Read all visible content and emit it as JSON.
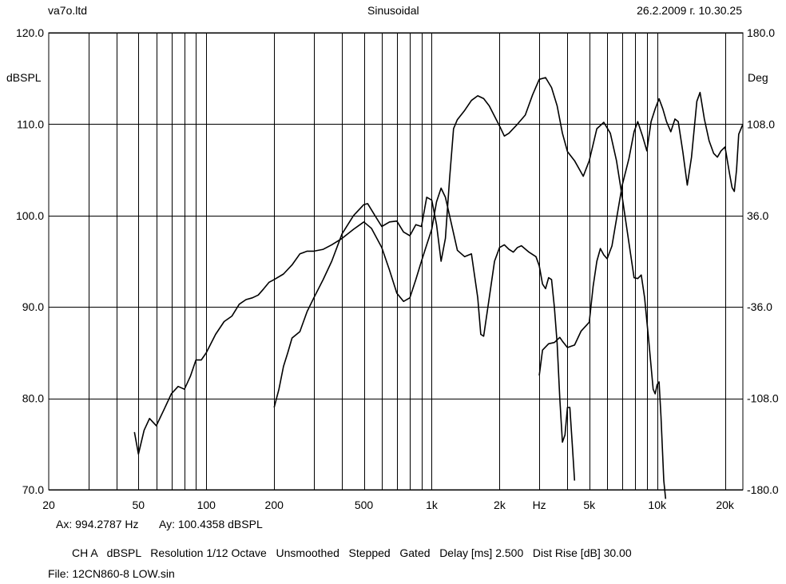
{
  "header": {
    "company": "va7o.ltd",
    "mode": "Sinusoidal",
    "timestamp": "26.2.2009 г. 10.30.25"
  },
  "axes": {
    "left_unit": "dBSPL",
    "right_unit": "Deg",
    "x_unit": "Hz"
  },
  "cursor": {
    "ax": "Ax: 994.2787 Hz",
    "ay": "Ay: 100.4358 dBSPL"
  },
  "settings_line": "CH A   dBSPL   Resolution 1/12 Octave   Unsmoothed   Stepped   Gated   Delay [ms] 2.500   Dist Rise [dB] 30.00",
  "file_line": "File: 12CN860-8 LOW.sin",
  "chart_data": {
    "type": "line",
    "x_scale": "log",
    "xlim": [
      20,
      24000
    ],
    "ylim": [
      70,
      120
    ],
    "y2lim": [
      -180,
      180
    ],
    "grid": true,
    "cursor_x": 994.2787,
    "x_ticks": [
      {
        "v": 20,
        "label": "20"
      },
      {
        "v": 50,
        "label": "50"
      },
      {
        "v": 100,
        "label": "100"
      },
      {
        "v": 200,
        "label": "200"
      },
      {
        "v": 500,
        "label": "500"
      },
      {
        "v": 1000,
        "label": "1k"
      },
      {
        "v": 2000,
        "label": "2k"
      },
      {
        "v": 5000,
        "label": "5k"
      },
      {
        "v": 10000,
        "label": "10k"
      },
      {
        "v": 20000,
        "label": "20k"
      }
    ],
    "x_unit_tick": 3000,
    "x_gridlines": [
      30,
      40,
      50,
      60,
      70,
      80,
      90,
      100,
      200,
      300,
      400,
      500,
      600,
      700,
      800,
      900,
      1000,
      2000,
      3000,
      4000,
      5000,
      6000,
      7000,
      8000,
      9000,
      10000,
      20000
    ],
    "y_ticks": [
      {
        "v": 70,
        "label": "70.0"
      },
      {
        "v": 80,
        "label": "80.0"
      },
      {
        "v": 90,
        "label": "90.0"
      },
      {
        "v": 100,
        "label": "100.0"
      },
      {
        "v": 110,
        "label": "110.0"
      },
      {
        "v": 120,
        "label": "120.0"
      }
    ],
    "y2_ticks": [
      {
        "v": -180,
        "label": "-180.0"
      },
      {
        "v": -108,
        "label": "-108.0"
      },
      {
        "v": -36,
        "label": "-36.0"
      },
      {
        "v": 36,
        "label": "36.0"
      },
      {
        "v": 108,
        "label": "108.0"
      },
      {
        "v": 180,
        "label": "180.0"
      }
    ],
    "series": [
      {
        "axis": "left",
        "points": [
          [
            48,
            76.3
          ],
          [
            50,
            73.9
          ],
          [
            53,
            76.5
          ],
          [
            56,
            77.8
          ],
          [
            60,
            77.0
          ],
          [
            65,
            78.8
          ],
          [
            70,
            80.5
          ],
          [
            75,
            81.3
          ],
          [
            80,
            81.0
          ],
          [
            85,
            82.4
          ],
          [
            90,
            84.2
          ],
          [
            95,
            84.2
          ],
          [
            100,
            85.0
          ],
          [
            110,
            87.0
          ],
          [
            120,
            88.4
          ],
          [
            130,
            89.0
          ],
          [
            140,
            90.3
          ],
          [
            150,
            90.8
          ],
          [
            160,
            91.0
          ],
          [
            170,
            91.3
          ],
          [
            180,
            92.0
          ],
          [
            190,
            92.7
          ],
          [
            200,
            93.0
          ],
          [
            220,
            93.6
          ],
          [
            240,
            94.6
          ],
          [
            260,
            95.8
          ],
          [
            280,
            96.1
          ],
          [
            300,
            96.1
          ],
          [
            330,
            96.3
          ],
          [
            360,
            96.8
          ],
          [
            400,
            97.5
          ],
          [
            450,
            98.5
          ],
          [
            500,
            99.3
          ],
          [
            540,
            98.6
          ],
          [
            600,
            96.5
          ],
          [
            650,
            94.0
          ],
          [
            700,
            91.5
          ],
          [
            750,
            90.6
          ],
          [
            800,
            91.0
          ],
          [
            850,
            93.0
          ],
          [
            900,
            95.0
          ],
          [
            950,
            96.8
          ],
          [
            1000,
            98.5
          ],
          [
            1050,
            101.5
          ],
          [
            1100,
            103.0
          ],
          [
            1150,
            102.0
          ],
          [
            1200,
            100.0
          ],
          [
            1300,
            96.2
          ],
          [
            1400,
            95.5
          ],
          [
            1500,
            95.8
          ],
          [
            1600,
            91.0
          ],
          [
            1650,
            87.0
          ],
          [
            1700,
            86.8
          ],
          [
            1800,
            91.0
          ],
          [
            1900,
            95.0
          ],
          [
            2000,
            96.5
          ],
          [
            2100,
            96.8
          ],
          [
            2200,
            96.3
          ],
          [
            2300,
            96.0
          ],
          [
            2400,
            96.5
          ],
          [
            2500,
            96.7
          ],
          [
            2700,
            96.0
          ],
          [
            2900,
            95.5
          ],
          [
            3000,
            94.5
          ],
          [
            3100,
            92.5
          ],
          [
            3200,
            92.0
          ],
          [
            3300,
            93.2
          ],
          [
            3400,
            93.0
          ],
          [
            3500,
            90.0
          ],
          [
            3600,
            86.0
          ],
          [
            3700,
            80.0
          ],
          [
            3800,
            75.2
          ],
          [
            3900,
            76.0
          ],
          [
            4000,
            79.0
          ],
          [
            4100,
            79.0
          ],
          [
            4200,
            75.0
          ],
          [
            4300,
            71.0
          ]
        ]
      },
      {
        "axis": "left",
        "points": [
          [
            200,
            79.0
          ],
          [
            210,
            81.0
          ],
          [
            220,
            83.5
          ],
          [
            230,
            85.0
          ],
          [
            240,
            86.6
          ],
          [
            260,
            87.3
          ],
          [
            280,
            89.5
          ],
          [
            300,
            91.0
          ],
          [
            330,
            93.0
          ],
          [
            360,
            95.0
          ],
          [
            400,
            98.0
          ],
          [
            450,
            100.0
          ],
          [
            500,
            101.2
          ],
          [
            520,
            101.3
          ],
          [
            560,
            100.0
          ],
          [
            600,
            98.8
          ],
          [
            650,
            99.3
          ],
          [
            700,
            99.4
          ],
          [
            750,
            98.2
          ],
          [
            800,
            97.8
          ],
          [
            850,
            99.0
          ],
          [
            900,
            98.8
          ],
          [
            950,
            102.0
          ],
          [
            1000,
            101.7
          ],
          [
            1050,
            99.0
          ],
          [
            1100,
            95.0
          ],
          [
            1150,
            97.5
          ],
          [
            1200,
            104.0
          ],
          [
            1250,
            109.5
          ],
          [
            1300,
            110.5
          ],
          [
            1400,
            111.5
          ],
          [
            1500,
            112.6
          ],
          [
            1600,
            113.1
          ],
          [
            1700,
            112.8
          ],
          [
            1800,
            112.0
          ],
          [
            2000,
            109.8
          ],
          [
            2100,
            108.7
          ],
          [
            2200,
            109.0
          ],
          [
            2400,
            110.0
          ],
          [
            2600,
            111.0
          ],
          [
            2800,
            113.2
          ],
          [
            3000,
            114.9
          ],
          [
            3200,
            115.1
          ],
          [
            3400,
            114.0
          ],
          [
            3600,
            112.0
          ],
          [
            3800,
            109.0
          ],
          [
            4000,
            107.0
          ],
          [
            4300,
            106.0
          ],
          [
            4700,
            104.3
          ],
          [
            5000,
            106.0
          ],
          [
            5400,
            109.5
          ],
          [
            5800,
            110.2
          ],
          [
            6200,
            109.0
          ],
          [
            6600,
            106.0
          ],
          [
            7000,
            102.0
          ],
          [
            7500,
            97.0
          ],
          [
            7900,
            93.2
          ],
          [
            8200,
            93.1
          ],
          [
            8500,
            93.5
          ],
          [
            8800,
            91.0
          ],
          [
            9200,
            86.0
          ],
          [
            9600,
            81.0
          ],
          [
            9800,
            80.5
          ],
          [
            10000,
            81.5
          ],
          [
            10200,
            81.8
          ],
          [
            10400,
            78.0
          ],
          [
            10700,
            71.0
          ],
          [
            10900,
            69.0
          ]
        ]
      },
      {
        "axis": "right",
        "points": [
          [
            3000,
            -90.0
          ],
          [
            3100,
            -70.0
          ],
          [
            3300,
            -65.0
          ],
          [
            3500,
            -64.0
          ],
          [
            3700,
            -60.0
          ],
          [
            3800,
            -63.0
          ],
          [
            4000,
            -68.0
          ],
          [
            4300,
            -66.0
          ],
          [
            4600,
            -55.0
          ],
          [
            5000,
            -48.0
          ],
          [
            5200,
            -20.0
          ],
          [
            5400,
            0.0
          ],
          [
            5600,
            10.0
          ],
          [
            5800,
            5.0
          ],
          [
            6000,
            2.0
          ],
          [
            6300,
            12.0
          ],
          [
            6700,
            40.0
          ],
          [
            7000,
            60.0
          ],
          [
            7500,
            81.0
          ],
          [
            7900,
            102.0
          ],
          [
            8200,
            110.0
          ],
          [
            8600,
            99.0
          ],
          [
            9000,
            87.0
          ],
          [
            9400,
            110.0
          ],
          [
            9800,
            120.0
          ],
          [
            10200,
            128.0
          ],
          [
            10600,
            120.0
          ],
          [
            11000,
            110.0
          ],
          [
            11500,
            102.0
          ],
          [
            12000,
            112.0
          ],
          [
            12400,
            110.0
          ],
          [
            13000,
            86.0
          ],
          [
            13600,
            60.0
          ],
          [
            14200,
            82.0
          ],
          [
            15000,
            126.0
          ],
          [
            15500,
            133.0
          ],
          [
            16200,
            112.0
          ],
          [
            17000,
            95.0
          ],
          [
            17800,
            85.0
          ],
          [
            18500,
            82.0
          ],
          [
            19200,
            87.0
          ],
          [
            20000,
            90.0
          ],
          [
            21000,
            68.0
          ],
          [
            21500,
            58.0
          ],
          [
            22000,
            55.0
          ],
          [
            22500,
            72.0
          ],
          [
            23000,
            100.0
          ],
          [
            24000,
            108.0
          ]
        ]
      }
    ]
  }
}
